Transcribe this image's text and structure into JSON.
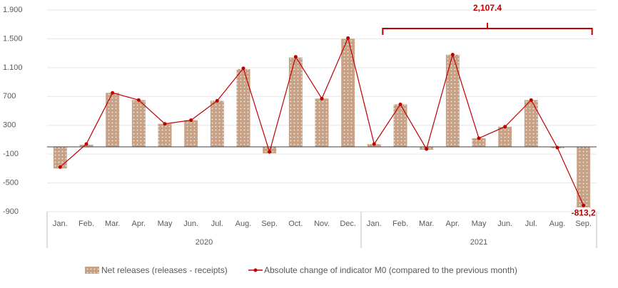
{
  "chart_data": {
    "type": "combo",
    "categories": [
      "Jan.",
      "Feb.",
      "Mar.",
      "Apr.",
      "May",
      "Jun.",
      "Jul.",
      "Aug.",
      "Sep.",
      "Oct.",
      "Nov.",
      "Dec.",
      "Jan.",
      "Feb.",
      "Mar.",
      "Apr.",
      "May",
      "Jun.",
      "Jul.",
      "Aug.",
      "Sep."
    ],
    "groups": [
      {
        "label": "2020",
        "count": 12
      },
      {
        "label": "2021",
        "count": 9
      }
    ],
    "series": [
      {
        "name": "Net releases (releases - receipts)",
        "type": "bar",
        "color": "#c8a287",
        "values": [
          -300,
          30,
          750,
          650,
          320,
          370,
          640,
          1080,
          -90,
          1240,
          670,
          1500,
          40,
          590,
          -40,
          1280,
          120,
          280,
          650,
          -20,
          -840
        ]
      },
      {
        "name": "Absolute change of indicator M0 (compared to the previous month)",
        "type": "line",
        "color": "#c00000",
        "values": [
          -280,
          40,
          750,
          650,
          320,
          370,
          640,
          1090,
          -70,
          1250,
          670,
          1510,
          40,
          590,
          -30,
          1280,
          120,
          280,
          650,
          -10,
          -813.2
        ],
        "value_labels": [
          null,
          null,
          null,
          null,
          null,
          null,
          null,
          null,
          null,
          null,
          null,
          null,
          null,
          null,
          null,
          null,
          null,
          null,
          null,
          null,
          "-813,2"
        ]
      }
    ],
    "annotation": {
      "label": "2,107.4",
      "from": 12,
      "to": 20
    },
    "ylim": [
      -900,
      1900
    ],
    "yticks": [
      -900,
      -500,
      -100,
      300,
      700,
      {
        "value": 1100,
        "label": "1.100"
      },
      {
        "value": 1500,
        "label": "1.500"
      },
      {
        "value": 1900,
        "label": "1.900"
      }
    ],
    "grid": true,
    "legend": "bottom"
  }
}
